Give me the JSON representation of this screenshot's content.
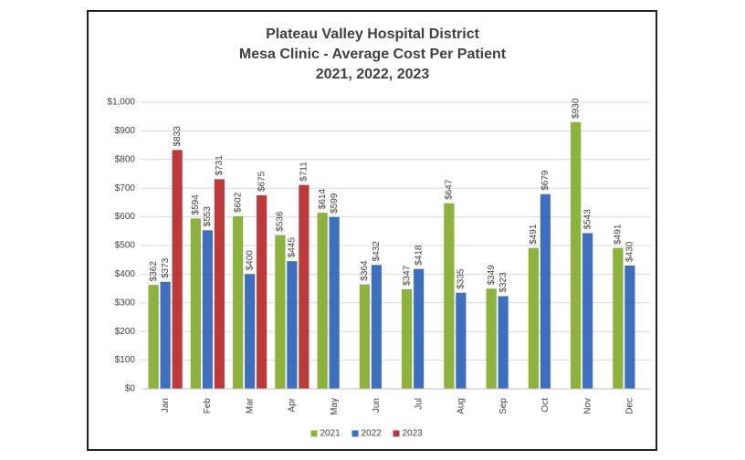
{
  "chart_data": {
    "type": "bar",
    "title": "Plateau Valley Hospital District",
    "subtitle": [
      "Mesa Clinic  - Average Cost Per Patient",
      "2021, 2022, 2023"
    ],
    "categories": [
      "Jan",
      "Feb",
      "Mar",
      "Apr",
      "May",
      "Jun",
      "Jul",
      "Aug",
      "Sep",
      "Oct",
      "Nov",
      "Dec"
    ],
    "series": [
      {
        "name": "2021",
        "color": "#8db33a",
        "values": [
          362,
          594,
          602,
          536,
          614,
          364,
          347,
          647,
          349,
          491,
          930,
          491
        ],
        "value_labels": [
          "$362",
          "$594",
          "$602",
          "$536",
          "$614",
          "$364",
          "$347",
          "$647",
          "$349",
          "$491",
          "$930",
          "$491"
        ]
      },
      {
        "name": "2022",
        "color": "#3d6fc0",
        "values": [
          373,
          553,
          400,
          445,
          599,
          432,
          418,
          335,
          323,
          679,
          543,
          430
        ],
        "value_labels": [
          "$373",
          "$553",
          "$400",
          "$445",
          "$599",
          "$432",
          "$418",
          "$335",
          "$323",
          "$679",
          "$543",
          "$430"
        ]
      },
      {
        "name": "2023",
        "color": "#c0393a",
        "values": [
          833,
          731,
          675,
          711,
          null,
          null,
          null,
          null,
          null,
          null,
          null,
          null
        ],
        "value_labels": [
          "$833",
          "$731",
          "$675",
          "$711",
          null,
          null,
          null,
          null,
          null,
          null,
          null,
          null
        ]
      }
    ],
    "ylim": [
      0,
      1000
    ],
    "yticks": [
      {
        "value": 0,
        "label": "$0"
      },
      {
        "value": 100,
        "label": "$100"
      },
      {
        "value": 200,
        "label": "$200"
      },
      {
        "value": 300,
        "label": "$300"
      },
      {
        "value": 400,
        "label": "$400"
      },
      {
        "value": 500,
        "label": "$500"
      },
      {
        "value": 600,
        "label": "$600"
      },
      {
        "value": 700,
        "label": "$700"
      },
      {
        "value": 800,
        "label": "$800"
      },
      {
        "value": 900,
        "label": "$900"
      },
      {
        "value": 1000,
        "label": "$1,000"
      }
    ],
    "grid": true,
    "legend": "bottom"
  }
}
